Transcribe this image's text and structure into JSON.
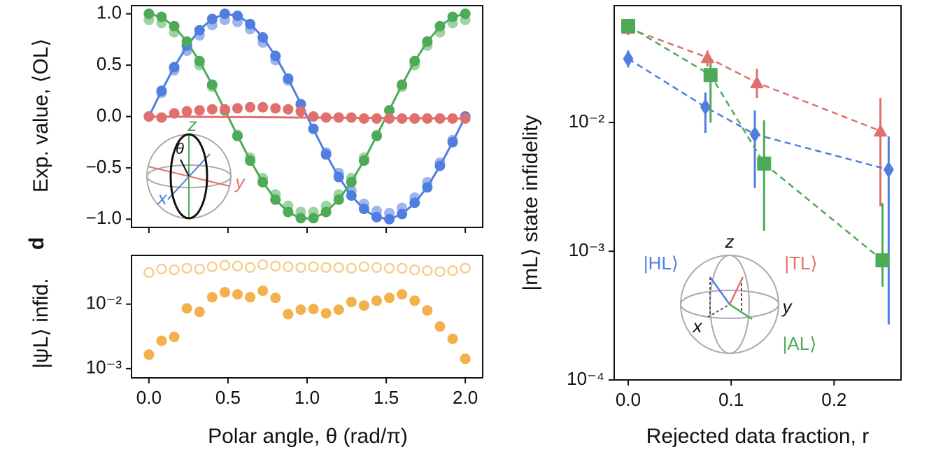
{
  "chart_data": [
    {
      "type": "line",
      "ylabel": "Exp. value, ⟨OL⟩",
      "annotations": {
        "z": "z",
        "theta": "θ",
        "x": "x",
        "y": "y"
      },
      "x": [
        0,
        0.08,
        0.16,
        0.24,
        0.32,
        0.4,
        0.48,
        0.56,
        0.64,
        0.72,
        0.8,
        0.88,
        0.96,
        1.04,
        1.12,
        1.2,
        1.28,
        1.36,
        1.44,
        1.52,
        1.6,
        1.68,
        1.76,
        1.84,
        1.92,
        2.0
      ],
      "xlim": [
        -0.11,
        2.11
      ],
      "xticks": [
        {
          "value": 0,
          "label": "0.0"
        },
        0.5,
        {
          "value": 1,
          "label": "1.0"
        },
        1.5,
        {
          "value": 2,
          "label": "2.0"
        }
      ],
      "ylim": [
        -1.08,
        1.08
      ],
      "yticks": [
        {
          "value": 1,
          "label": "1.0"
        },
        0.5,
        {
          "value": 0,
          "label": "0.0"
        },
        {
          "value": -0.5,
          "label": "−0.5"
        },
        {
          "value": -1,
          "label": "−1.0"
        }
      ],
      "series": [
        {
          "style": "dots",
          "color": "#9db6ee",
          "values": [
            0,
            0.23,
            0.45,
            0.64,
            0.79,
            0.89,
            0.94,
            0.92,
            0.85,
            0.72,
            0.55,
            0.35,
            0.12,
            -0.12,
            -0.35,
            -0.55,
            -0.72,
            -0.85,
            -0.92,
            -0.94,
            -0.89,
            -0.79,
            -0.64,
            -0.45,
            -0.23,
            0
          ]
        },
        {
          "style": "dots",
          "color": "#9fd3a3",
          "values": [
            0.94,
            0.91,
            0.82,
            0.69,
            0.5,
            0.29,
            0.06,
            -0.18,
            -0.4,
            -0.6,
            -0.76,
            -0.87,
            -0.93,
            -0.93,
            -0.87,
            -0.76,
            -0.6,
            -0.4,
            -0.18,
            0.06,
            0.29,
            0.5,
            0.69,
            0.82,
            0.91,
            0.94
          ]
        },
        {
          "style": "line",
          "color": "#4f7ee0",
          "values": [
            0,
            0.249,
            0.482,
            0.685,
            0.844,
            0.951,
            0.998,
            0.982,
            0.905,
            0.771,
            0.588,
            0.368,
            0.125,
            -0.125,
            -0.368,
            -0.588,
            -0.771,
            -0.905,
            -0.982,
            -0.998,
            -0.951,
            -0.844,
            -0.685,
            -0.482,
            -0.249,
            0
          ]
        },
        {
          "style": "line",
          "color": "#4daa57",
          "values": [
            1,
            0.969,
            0.876,
            0.729,
            0.536,
            0.309,
            0.063,
            -0.187,
            -0.426,
            -0.637,
            -0.809,
            -0.93,
            -0.992,
            -0.992,
            -0.93,
            -0.809,
            -0.637,
            -0.426,
            -0.187,
            0.063,
            0.309,
            0.536,
            0.729,
            0.876,
            0.969,
            1
          ]
        },
        {
          "style": "line",
          "color": "#e0706e",
          "values": [
            0,
            -0.001,
            -0.002,
            -0.002,
            -0.003,
            -0.004,
            -0.005,
            -0.006,
            -0.006,
            -0.007,
            -0.008,
            -0.009,
            -0.01,
            -0.01,
            -0.011,
            -0.012,
            -0.013,
            -0.014,
            -0.014,
            -0.015,
            -0.016,
            -0.017,
            -0.018,
            -0.018,
            -0.019,
            -0.02
          ]
        },
        {
          "style": "dots",
          "color": "#4f7ee0",
          "values": [
            0,
            0.25,
            0.48,
            0.69,
            0.84,
            0.95,
            1.0,
            0.98,
            0.9,
            0.77,
            0.59,
            0.37,
            0.12,
            -0.12,
            -0.37,
            -0.59,
            -0.77,
            -0.9,
            -0.98,
            -1.0,
            -0.95,
            -0.84,
            -0.69,
            -0.48,
            -0.25,
            0
          ]
        },
        {
          "style": "dots",
          "color": "#4daa57",
          "values": [
            1.0,
            0.97,
            0.88,
            0.73,
            0.54,
            0.31,
            0.06,
            -0.19,
            -0.43,
            -0.64,
            -0.81,
            -0.93,
            -0.99,
            -0.99,
            -0.93,
            -0.81,
            -0.64,
            -0.43,
            -0.19,
            0.06,
            0.31,
            0.54,
            0.73,
            0.88,
            0.97,
            1.0
          ]
        },
        {
          "style": "dots",
          "color": "#e0706e",
          "values": [
            0,
            -0.01,
            0.03,
            0.05,
            0.06,
            0.07,
            0.07,
            0.08,
            0.09,
            0.09,
            0.08,
            0.07,
            0.05,
            0.0,
            -0.01,
            -0.01,
            -0.01,
            -0.02,
            -0.02,
            -0.02,
            -0.02,
            -0.02,
            -0.02,
            -0.02,
            -0.02,
            -0.02
          ]
        }
      ]
    },
    {
      "type": "scatter",
      "ylabel": "|ψL⟩ infid.",
      "panel_label": "d",
      "xlabel": "Polar angle, θ (rad/π)",
      "x": [
        0,
        0.08,
        0.16,
        0.24,
        0.32,
        0.4,
        0.48,
        0.56,
        0.64,
        0.72,
        0.8,
        0.88,
        0.96,
        1.04,
        1.12,
        1.2,
        1.28,
        1.36,
        1.44,
        1.52,
        1.6,
        1.68,
        1.76,
        1.84,
        1.92,
        2.0
      ],
      "xlim": [
        -0.11,
        2.11
      ],
      "xticks": [
        {
          "value": 0,
          "label": "0.0"
        },
        0.5,
        {
          "value": 1,
          "label": "1.0"
        },
        1.5,
        {
          "value": 2,
          "label": "2.0"
        }
      ],
      "log_y": true,
      "ylim": [
        0.00072,
        0.057
      ],
      "yticks": [
        {
          "value": 0.01,
          "label": "10⁻²"
        },
        {
          "value": 0.001,
          "label": "10⁻³"
        }
      ],
      "series": [
        {
          "style": "open",
          "color": "#f7cf94",
          "values": [
            0.031,
            0.035,
            0.034,
            0.036,
            0.035,
            0.038,
            0.04,
            0.039,
            0.037,
            0.041,
            0.039,
            0.038,
            0.037,
            0.038,
            0.037,
            0.037,
            0.036,
            0.038,
            0.037,
            0.036,
            0.036,
            0.034,
            0.033,
            0.032,
            0.033,
            0.036
          ]
        },
        {
          "style": "dots",
          "color": "#f3b04b",
          "values": [
            0.00165,
            0.0027,
            0.0031,
            0.0086,
            0.0076,
            0.0128,
            0.0153,
            0.0142,
            0.0128,
            0.0161,
            0.0125,
            0.007,
            0.0082,
            0.0084,
            0.0072,
            0.0082,
            0.0108,
            0.0095,
            0.0113,
            0.0125,
            0.0142,
            0.0113,
            0.008,
            0.0045,
            0.0029,
            0.00142
          ]
        }
      ]
    },
    {
      "type": "line",
      "ylabel": "|mL⟩ state infidelity",
      "xlabel": "Rejected data fraction, r",
      "annotations": {
        "z": "z",
        "x": "x",
        "y": "y"
      },
      "xlim": [
        -0.0136,
        0.265
      ],
      "xticks": [
        {
          "value": 0,
          "label": "0.0"
        },
        0.1,
        0.2
      ],
      "log_y": true,
      "ylim": [
        0.0001,
        0.081
      ],
      "yticks": [
        {
          "value": 0.01,
          "label": "10⁻²"
        },
        {
          "value": 0.001,
          "label": "10⁻³"
        },
        {
          "value": 0.0001,
          "label": "10⁻⁴"
        }
      ],
      "series": [
        {
          "name": "|TL⟩",
          "marker": "triangle",
          "color": "#e0706e",
          "x": [
            0,
            0.077,
            0.125,
            0.245
          ],
          "values": [
            0.054,
            0.032,
            0.0204,
            0.0086
          ],
          "lower": [
            0.0478,
            0.0272,
            0.0155,
            0.00223
          ],
          "upper": [
            0.0614,
            0.0363,
            0.0262,
            0.0155
          ]
        },
        {
          "name": "|HL⟩",
          "marker": "diamond",
          "color": "#4f7ee0",
          "x": [
            0,
            0.075,
            0.123,
            0.253
          ],
          "values": [
            0.0313,
            0.0132,
            0.0081,
            0.0043
          ],
          "lower": [
            0.0268,
            0.0083,
            0.0031,
            0.00027
          ],
          "upper": [
            0.0363,
            0.0171,
            0.0124,
            0.0078
          ]
        },
        {
          "name": "|AL⟩",
          "marker": "square",
          "color": "#4daa57",
          "x": [
            0,
            0.08,
            0.132,
            0.247
          ],
          "values": [
            0.0563,
            0.0234,
            0.0048,
            0.00085
          ],
          "lower": [
            0.0496,
            0.01,
            0.00144,
            0.00053
          ],
          "upper": [
            0.063,
            0.029,
            0.0104,
            0.00237
          ]
        }
      ]
    }
  ]
}
